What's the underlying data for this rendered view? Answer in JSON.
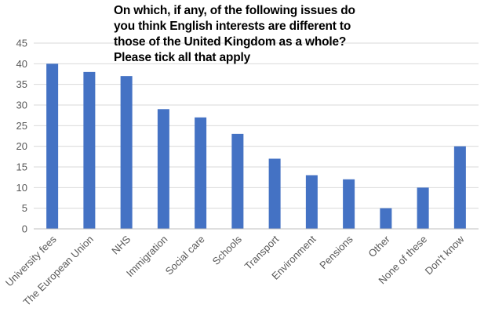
{
  "chart_data": {
    "type": "bar",
    "title": "On which, if any, of the following issues do you think English interests are different to those of the United Kingdom as a whole? Please tick all that apply",
    "xlabel": "",
    "ylabel": "",
    "categories": [
      "University fees",
      "The European Union",
      "NHS",
      "Immigration",
      "Social care",
      "Schools",
      "Transport",
      "Environment",
      "Pensions",
      "Other",
      "None of these",
      "Don't know"
    ],
    "values": [
      40,
      38,
      37,
      29,
      27,
      23,
      17,
      13,
      12,
      5,
      10,
      20
    ],
    "ylim": [
      0,
      45
    ],
    "yticks": [
      "0",
      "5",
      "10",
      "15",
      "20",
      "25",
      "30",
      "35",
      "40",
      "45"
    ],
    "grid": true,
    "legend": "none",
    "colors": {
      "bar": "#4472C4",
      "grid": "#D9D9D9",
      "axis": "#BFBFBF",
      "tick_text": "#595959"
    }
  }
}
